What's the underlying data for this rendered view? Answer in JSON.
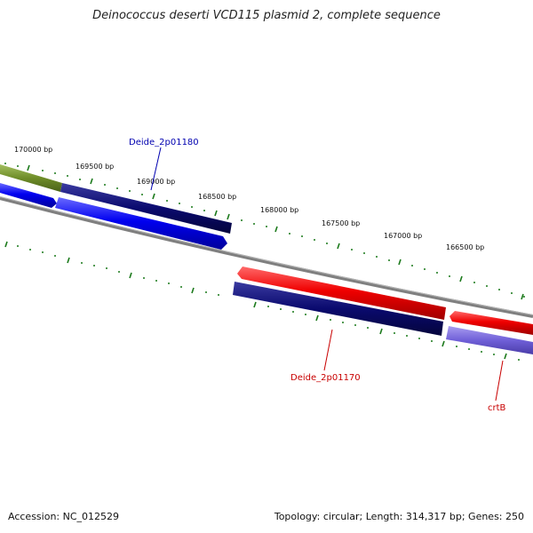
{
  "title": "Deinococcus deserti VCD115 plasmid 2, complete sequence",
  "colors": {
    "tick": "#1c7a1c",
    "backbone": "#7f7f7f",
    "gene_blue": "#0000f0",
    "gene_navy": "#0a0a6e",
    "gene_red": "#f00000",
    "gene_olive": "#6e8c28",
    "gene_lavender": "#7060d8",
    "label_blue": "#0000b0",
    "label_red": "#c80000"
  },
  "scale_labels": [
    "170000 bp",
    "169500 bp",
    "169000 bp",
    "168500 bp",
    "168000 bp",
    "167500 bp",
    "167000 bp",
    "166500 bp"
  ],
  "gene_labels": [
    {
      "id": "deide-2p01180",
      "text": "Deide_2p01180",
      "color": "#0000b0"
    },
    {
      "id": "deide-2p01170",
      "text": "Deide_2p01170",
      "color": "#c80000"
    },
    {
      "id": "crtb",
      "text": "crtB",
      "color": "#c80000"
    }
  ],
  "footer": {
    "accession": "Accession: NC_012529",
    "summary": "Topology: circular; Length: 314,317 bp; Genes: 250"
  }
}
